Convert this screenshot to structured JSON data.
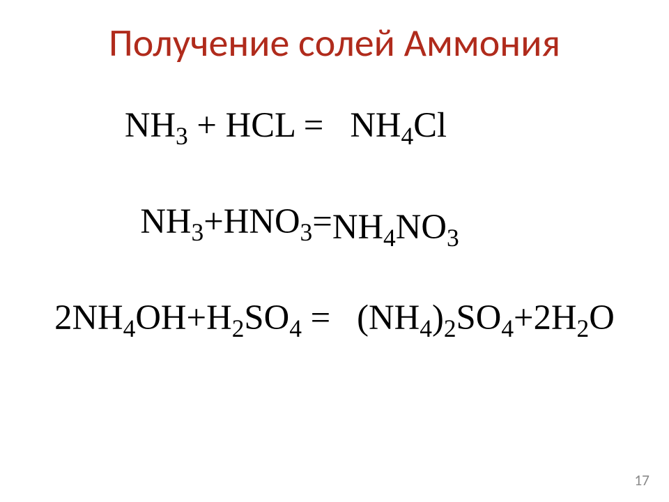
{
  "title": {
    "text": "Получение солей Аммония",
    "color": "#b02b1c",
    "fontsize_pt": 42
  },
  "equations": {
    "fontsize_pt": 38,
    "color": "#000000",
    "eq1": {
      "lhs_a": "NH",
      "lhs_a_sub": "3",
      "plus1": " + ",
      "lhs_b": "HCL",
      "eq": " = ",
      "rhs": "NH",
      "rhs_sub1": "4",
      "rhs_tail": "Cl"
    },
    "eq2": {
      "lhs_a": "NH",
      "lhs_a_sub": "3",
      "plus1": "+",
      "lhs_b": "HNO",
      "lhs_b_sub": "3",
      "eq": "=",
      "rhs_a": "NH",
      "rhs_a_sub": "4",
      "rhs_b": "NO",
      "rhs_b_sub": "3"
    },
    "eq3": {
      "lhs_coef1": "2",
      "lhs_a": "NH",
      "lhs_a_sub": "4",
      "lhs_a2": "OH",
      "plus1": "+",
      "lhs_b": "H",
      "lhs_b_sub": "2",
      "lhs_b2": "SO",
      "lhs_b2_sub": "4",
      "eq": " = ",
      "rhs_a_open": "(NH",
      "rhs_a_sub": "4",
      "rhs_a_close": ")",
      "rhs_a_sub2": "2",
      "rhs_b": "SO",
      "rhs_b_sub": "4",
      "plus2": "+",
      "rhs_coef2": "2",
      "rhs_c": "H",
      "rhs_c_sub": "2",
      "rhs_c2": "O"
    }
  },
  "pagenum": {
    "text": "17",
    "color": "#8a8a8a",
    "fontsize_pt": 16
  }
}
